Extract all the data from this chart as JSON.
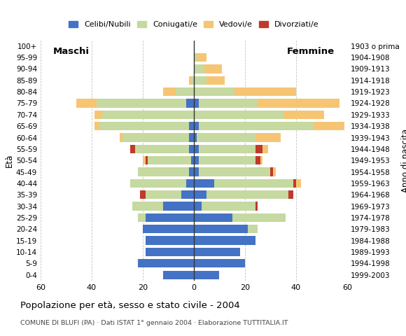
{
  "age_groups": [
    "100+",
    "95-99",
    "90-94",
    "85-89",
    "80-84",
    "75-79",
    "70-74",
    "65-69",
    "60-64",
    "55-59",
    "50-54",
    "45-49",
    "40-44",
    "35-39",
    "30-34",
    "25-29",
    "20-24",
    "15-19",
    "10-14",
    "5-9",
    "0-4"
  ],
  "birth_years": [
    "1903 o prima",
    "1904-1908",
    "1909-1913",
    "1914-1918",
    "1919-1923",
    "1924-1928",
    "1929-1933",
    "1934-1938",
    "1939-1943",
    "1944-1948",
    "1949-1953",
    "1954-1958",
    "1959-1963",
    "1964-1968",
    "1969-1973",
    "1974-1978",
    "1979-1983",
    "1984-1988",
    "1989-1993",
    "1994-1998",
    "1999-2003"
  ],
  "males": {
    "celibe": [
      0,
      0,
      0,
      0,
      0,
      3,
      0,
      2,
      2,
      2,
      1,
      2,
      3,
      5,
      12,
      19,
      20,
      19,
      19,
      22,
      12
    ],
    "coniugato": [
      0,
      0,
      0,
      1,
      7,
      35,
      36,
      35,
      26,
      21,
      17,
      20,
      22,
      14,
      12,
      3,
      0,
      0,
      0,
      0,
      0
    ],
    "vedovo": [
      0,
      0,
      0,
      1,
      5,
      8,
      3,
      2,
      1,
      0,
      1,
      0,
      0,
      0,
      0,
      0,
      0,
      0,
      0,
      0,
      0
    ],
    "divorziato": [
      0,
      0,
      0,
      0,
      0,
      0,
      0,
      0,
      0,
      2,
      1,
      0,
      0,
      2,
      0,
      0,
      0,
      0,
      0,
      0,
      0
    ]
  },
  "females": {
    "celibe": [
      0,
      0,
      0,
      0,
      0,
      2,
      0,
      2,
      1,
      2,
      2,
      2,
      8,
      5,
      3,
      15,
      21,
      24,
      18,
      20,
      10
    ],
    "coniugato": [
      0,
      1,
      4,
      5,
      16,
      23,
      35,
      45,
      23,
      22,
      22,
      28,
      31,
      32,
      21,
      21,
      4,
      0,
      0,
      0,
      0
    ],
    "vedovo": [
      0,
      4,
      7,
      7,
      24,
      32,
      16,
      12,
      10,
      2,
      1,
      1,
      2,
      0,
      0,
      0,
      0,
      0,
      0,
      0,
      0
    ],
    "divorziato": [
      0,
      0,
      0,
      0,
      0,
      0,
      0,
      0,
      0,
      3,
      2,
      1,
      1,
      2,
      1,
      0,
      0,
      0,
      0,
      0,
      0
    ]
  },
  "colors": {
    "celibe": "#4472C4",
    "coniugato": "#c5d9a0",
    "vedovo": "#f6c574",
    "divorziato": "#c0392b"
  },
  "xlim": 60,
  "title": "Popolazione per età, sesso e stato civile - 2004",
  "subtitle": "COMUNE DI BLUFI (PA) · Dati ISTAT 1° gennaio 2004 · Elaborazione TUTTITALIA.IT",
  "ylabel_left": "Età",
  "ylabel_right": "Anno di nascita",
  "label_maschi": "Maschi",
  "label_femmine": "Femmine",
  "legend_labels": [
    "Celibi/Nubili",
    "Coniugati/e",
    "Vedovi/e",
    "Divorziati/e"
  ]
}
